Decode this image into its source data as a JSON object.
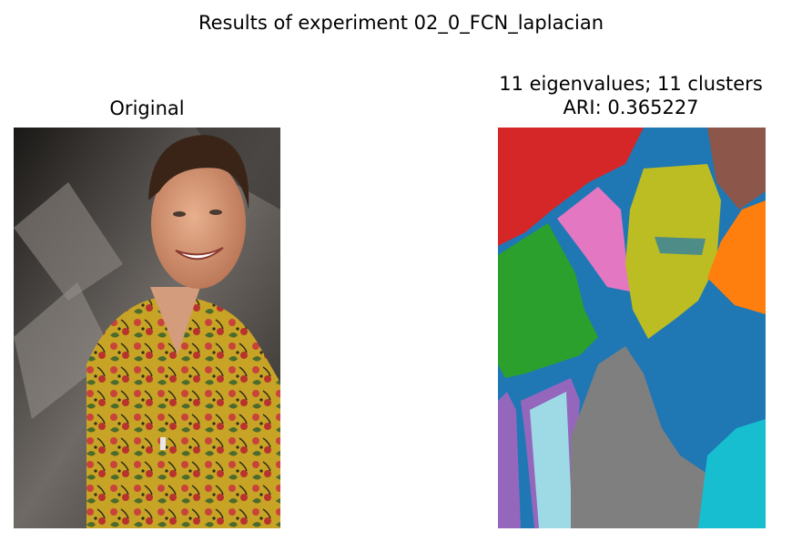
{
  "figure": {
    "suptitle": "Results of experiment 02_0_FCN_laplacian"
  },
  "chart_data": [
    {
      "type": "image",
      "title": "Original",
      "content": "photograph of a smiling man with dark hair wearing a yellow paisley shirt with red flowers, in front of a gray draped background"
    },
    {
      "type": "heatmap",
      "title_line1": "11 eigenvalues; 11 clusters",
      "title_line2": "ARI: 0.365227",
      "n_eigenvalues": 11,
      "n_clusters": 11,
      "ARI": 0.365227,
      "content": "segmentation label map of the photograph",
      "cluster_colors": [
        "#1f77b4",
        "#ff7f0e",
        "#2ca02c",
        "#d62728",
        "#9467bd",
        "#8c564b",
        "#e377c2",
        "#7f7f7f",
        "#bcbd22",
        "#17becf",
        "#9edae5"
      ]
    }
  ]
}
